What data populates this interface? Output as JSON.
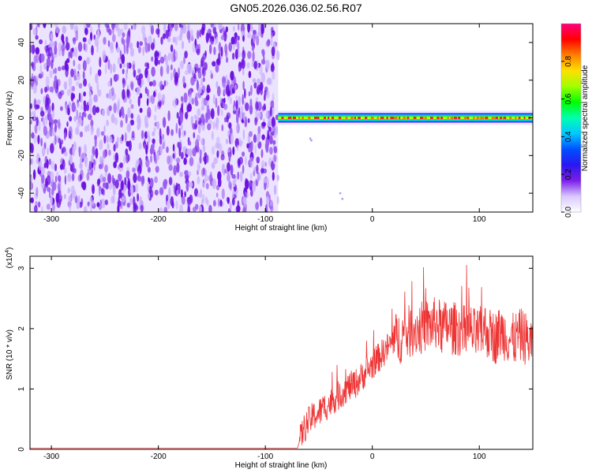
{
  "title": "GN05.2026.036.02.56.R07",
  "chart_data": [
    {
      "type": "heatmap",
      "xlabel": "Height of straight line (km)",
      "ylabel": "Frequency (Hz)",
      "xlim": [
        -320,
        150
      ],
      "ylim": [
        -50,
        50
      ],
      "x_ticks": [
        -300,
        -200,
        -100,
        0,
        100
      ],
      "y_ticks": [
        -40,
        -20,
        0,
        20,
        40
      ],
      "noise_region": {
        "x_range": [
          -320,
          -88
        ],
        "y_range": [
          -50,
          50
        ],
        "color": "#7b2be0"
      },
      "signal_band": {
        "x_range": [
          -88,
          150
        ],
        "center_frequency": 0,
        "notes": "narrow band around 0 Hz, high amplitude above approx -88 km"
      },
      "colorbar": {
        "label": "Normalized spectral amplitude",
        "range": [
          0,
          1
        ],
        "ticks": [
          "0.0",
          "0.2",
          "0.4",
          "0.6",
          "0.8"
        ],
        "colormap": [
          "#ffffff",
          "#d9c8ff",
          "#7b1fe8",
          "#2a17f0",
          "#0050ff",
          "#00c8ff",
          "#00ffb0",
          "#00ff00",
          "#a0ff00",
          "#ffe000",
          "#ff8000",
          "#ff0000",
          "#ff0080"
        ]
      }
    },
    {
      "type": "line",
      "xlabel": "Height of straight line (km)",
      "ylabel": "SNR (10 * v/v)",
      "y_multiplier": "(x10⁴)",
      "y_multiplier_base": "(x10",
      "y_multiplier_exp": "4",
      "y_multiplier_close": ")",
      "xlim": [
        -320,
        150
      ],
      "ylim": [
        0,
        3.2
      ],
      "x_ticks": [
        -300,
        -200,
        -100,
        0,
        100
      ],
      "y_ticks": [
        0,
        1,
        2,
        3
      ],
      "series": [
        {
          "color": "#ee3333",
          "x": [
            -320,
            -100,
            -80,
            -70,
            -65,
            -60,
            -55,
            -50,
            -45,
            -40,
            -35,
            -30,
            -25,
            -20,
            -15,
            -10,
            -5,
            0,
            5,
            10,
            15,
            20,
            25,
            30,
            35,
            40,
            45,
            50,
            55,
            60,
            65,
            70,
            75,
            80,
            85,
            90,
            95,
            100,
            105,
            110,
            115,
            120,
            125,
            130,
            135,
            140,
            145,
            150
          ],
          "y": [
            0.02,
            0.02,
            0.02,
            0.02,
            0.3,
            0.45,
            0.55,
            0.6,
            0.7,
            0.75,
            0.85,
            0.9,
            1.0,
            1.05,
            1.1,
            1.2,
            1.3,
            1.4,
            1.5,
            1.6,
            1.7,
            1.8,
            1.85,
            1.9,
            1.95,
            2.0,
            2.0,
            2.05,
            2.05,
            2.1,
            2.0,
            2.05,
            2.0,
            2.0,
            1.95,
            2.0,
            1.9,
            1.9,
            2.0,
            1.9,
            1.85,
            1.95,
            1.9,
            1.8,
            1.85,
            1.9,
            1.8,
            1.75
          ]
        }
      ]
    }
  ]
}
